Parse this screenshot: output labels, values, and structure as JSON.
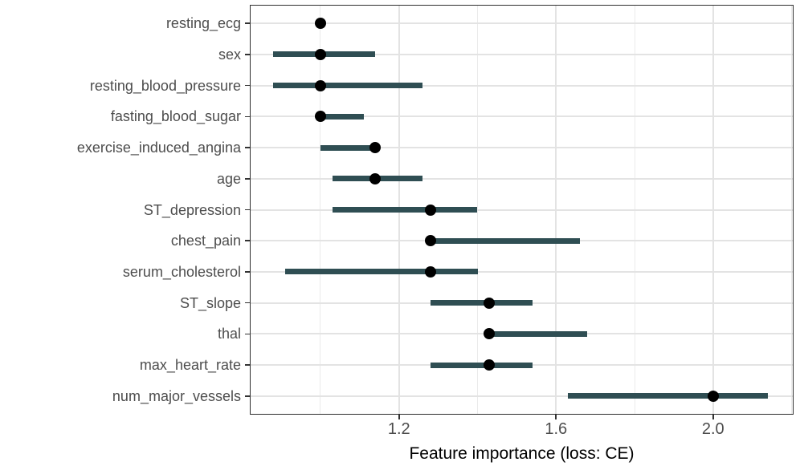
{
  "chart_data": {
    "type": "scatter",
    "subtype": "dot_with_interval",
    "orientation": "horizontal",
    "title": "",
    "xlabel": "Feature importance (loss: CE)",
    "ylabel": "",
    "xlim": [
      0.82,
      2.205
    ],
    "x_major_ticks": [
      1.2,
      1.6,
      2.0
    ],
    "x_tick_labels": [
      "1.2",
      "1.6",
      "2.0"
    ],
    "x_minor_ticks": [
      1.0,
      1.4,
      1.8,
      2.2
    ],
    "grid": true,
    "legend": "none",
    "categories": [
      "resting_ecg",
      "sex",
      "resting_blood_pressure",
      "fasting_blood_sugar",
      "exercise_induced_angina",
      "age",
      "ST_depression",
      "chest_pain",
      "serum_cholesterol",
      "ST_slope",
      "thal",
      "max_heart_rate",
      "num_major_vessels"
    ],
    "series": [
      {
        "name": "feature_importance",
        "points": [
          {
            "feature": "resting_ecg",
            "low": 0.99,
            "value": 1.0,
            "high": 1.01
          },
          {
            "feature": "sex",
            "low": 0.88,
            "value": 1.0,
            "high": 1.14
          },
          {
            "feature": "resting_blood_pressure",
            "low": 0.88,
            "value": 1.0,
            "high": 1.26
          },
          {
            "feature": "fasting_blood_sugar",
            "low": 0.99,
            "value": 1.0,
            "high": 1.11
          },
          {
            "feature": "exercise_induced_angina",
            "low": 1.0,
            "value": 1.14,
            "high": 1.15
          },
          {
            "feature": "age",
            "low": 1.03,
            "value": 1.14,
            "high": 1.26
          },
          {
            "feature": "ST_depression",
            "low": 1.03,
            "value": 1.28,
            "high": 1.4
          },
          {
            "feature": "chest_pain",
            "low": 1.27,
            "value": 1.28,
            "high": 1.66
          },
          {
            "feature": "serum_cholesterol",
            "low": 0.91,
            "value": 1.28,
            "high": 1.4
          },
          {
            "feature": "ST_slope",
            "low": 1.28,
            "value": 1.43,
            "high": 1.54
          },
          {
            "feature": "thal",
            "low": 1.42,
            "value": 1.43,
            "high": 1.68
          },
          {
            "feature": "max_heart_rate",
            "low": 1.28,
            "value": 1.43,
            "high": 1.54
          },
          {
            "feature": "num_major_vessels",
            "low": 1.63,
            "value": 2.0,
            "high": 2.14
          }
        ]
      }
    ],
    "colors": {
      "interval": "#2f4e53",
      "dot": "#000000",
      "grid_major": "#e3e3e3",
      "grid_minor": "#ebebeb",
      "panel_border": "#2f2f2f",
      "axis_text": "#4d4d4d",
      "axis_title": "#000000",
      "tick_mark": "#333333",
      "background": "#ffffff"
    }
  }
}
